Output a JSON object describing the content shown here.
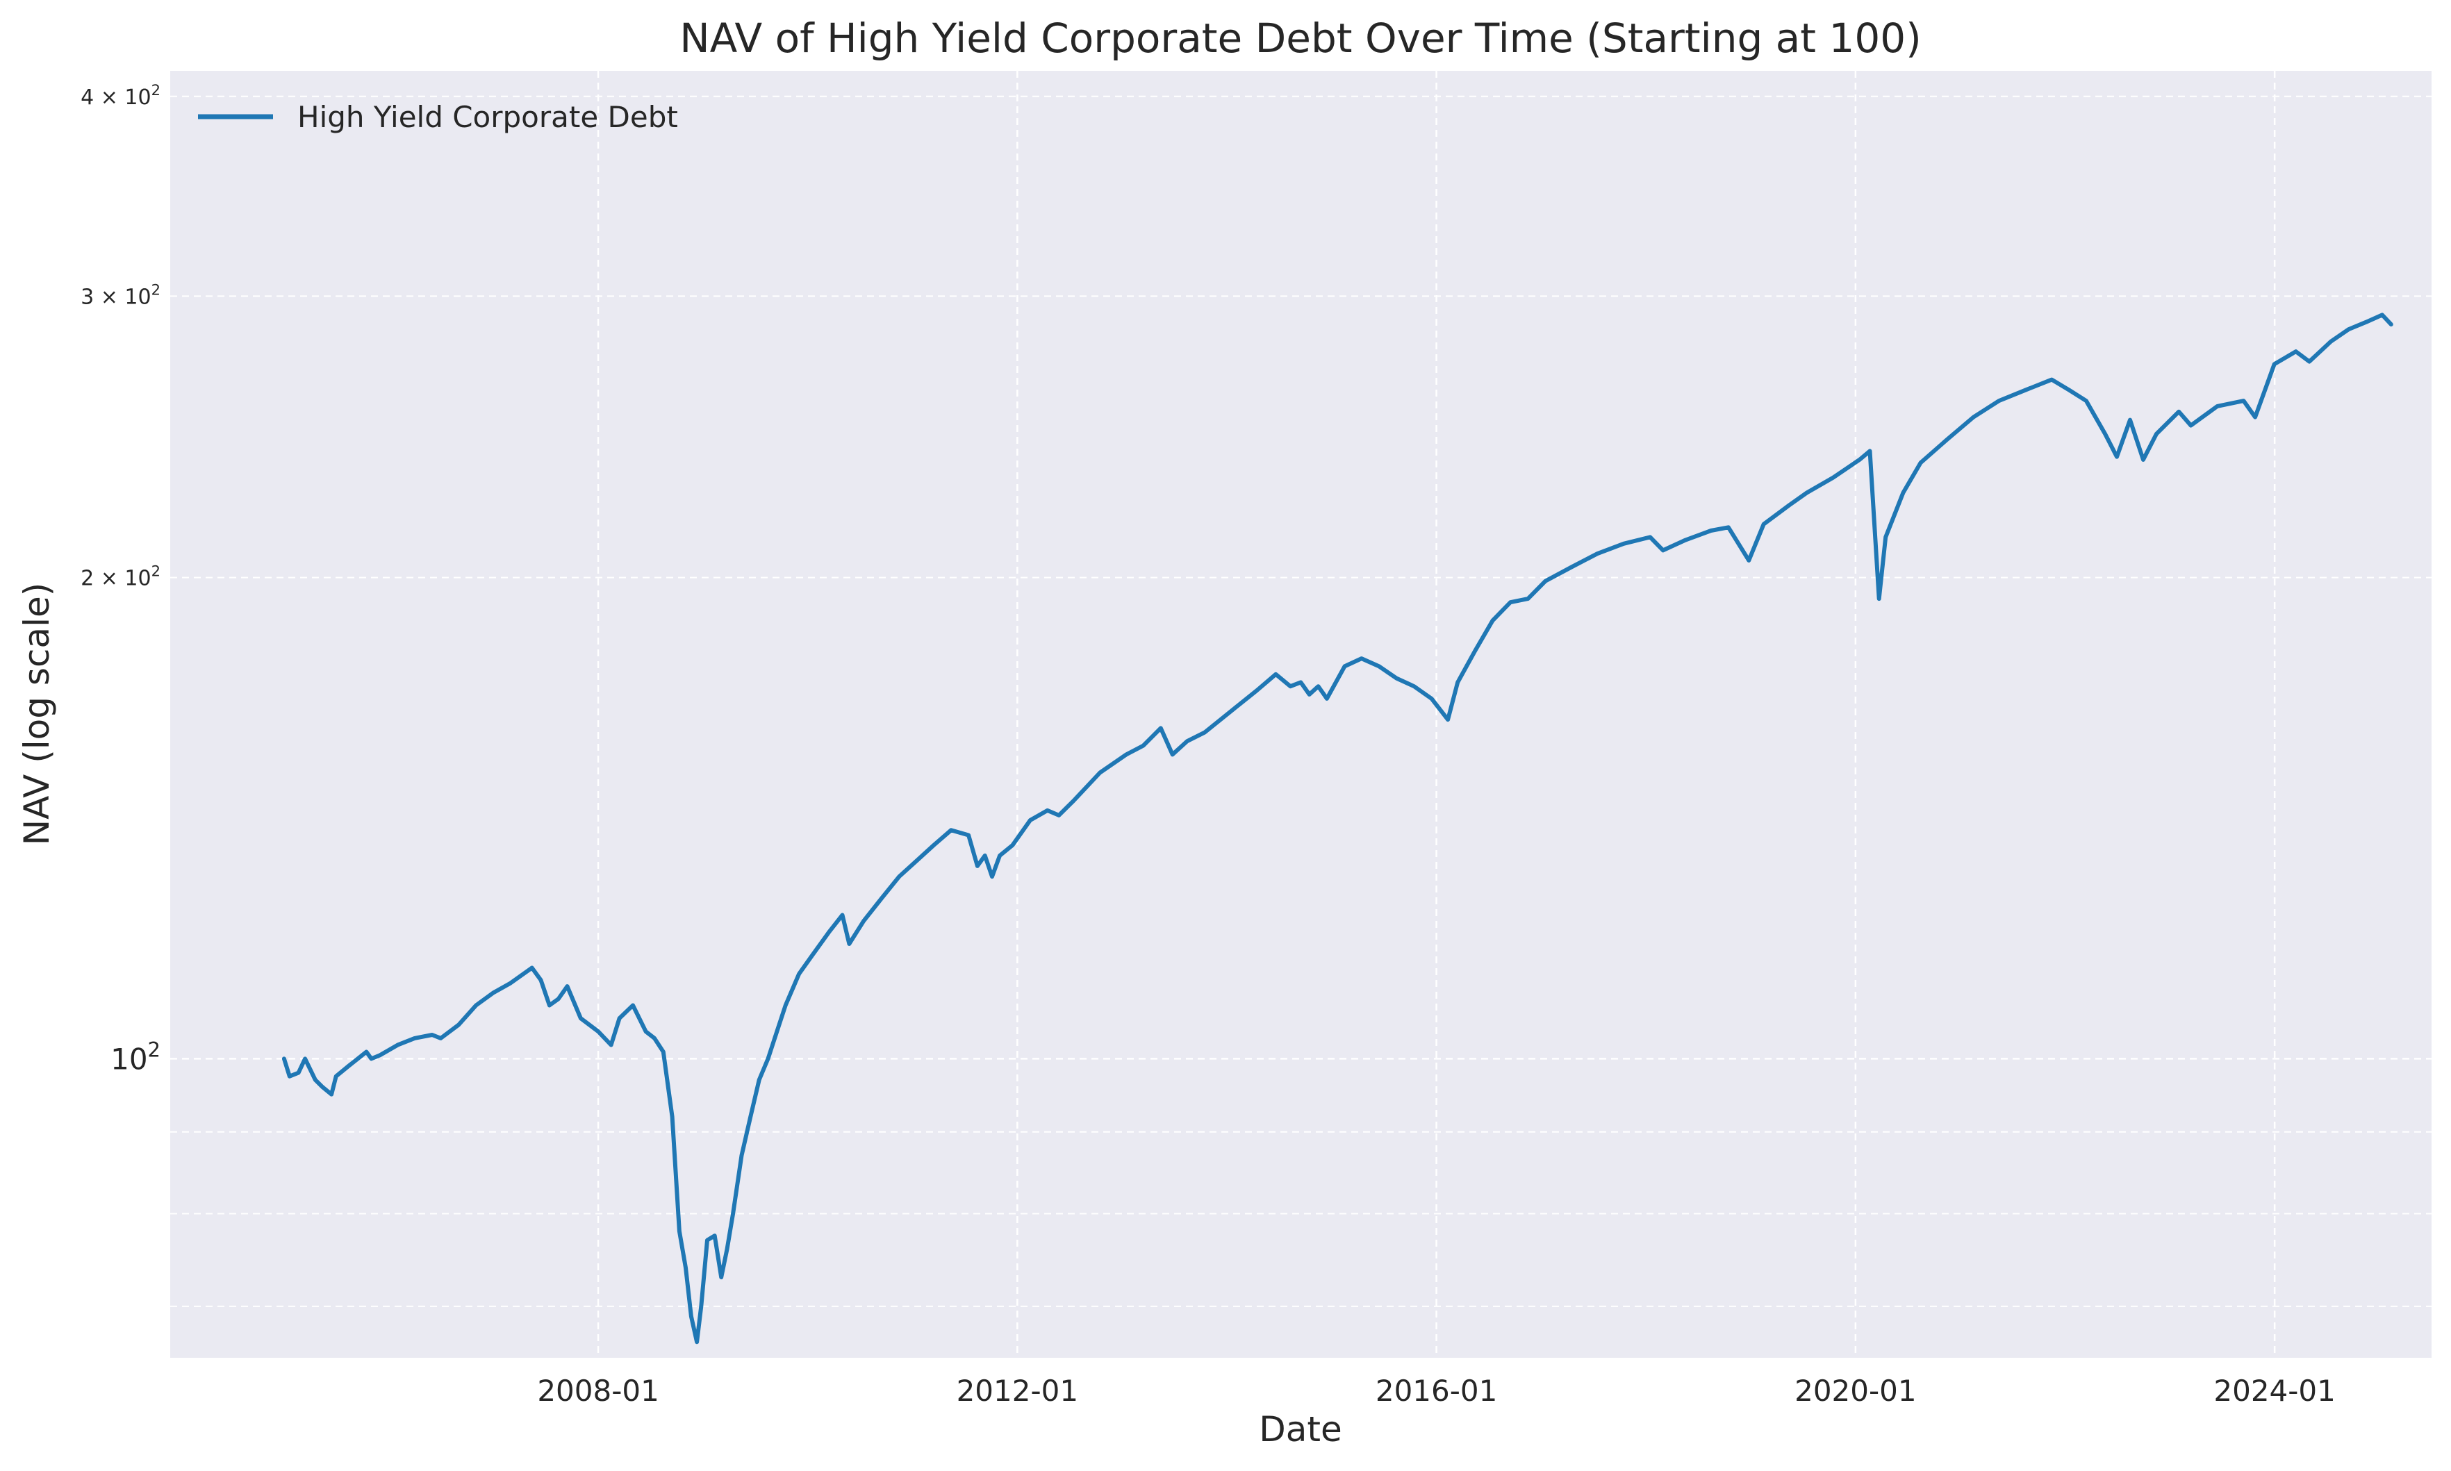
{
  "chart_data": {
    "type": "line",
    "title": "NAV of High Yield Corporate Debt Over Time (Starting at 100)",
    "xlabel": "Date",
    "ylabel": "NAV (log scale)",
    "yscale": "log",
    "ylim": [
      65,
      415
    ],
    "xlim": [
      "2003-12-01",
      "2025-07-01"
    ],
    "grid": true,
    "legend_position": "top-left",
    "x_ticks": [
      "2008-01",
      "2012-01",
      "2016-01",
      "2020-01",
      "2024-01"
    ],
    "y_major_ticks": [
      {
        "value": 100,
        "base": "10",
        "exp": "2"
      }
    ],
    "y_minor_ticks": [
      {
        "value": 70,
        "coef": "",
        "exp": ""
      },
      {
        "value": 80,
        "coef": "",
        "exp": ""
      },
      {
        "value": 90,
        "coef": "",
        "exp": ""
      },
      {
        "value": 200,
        "coef": "2",
        "exp": "2"
      },
      {
        "value": 300,
        "coef": "3",
        "exp": "2"
      },
      {
        "value": 400,
        "coef": "4",
        "exp": "2"
      }
    ],
    "colors": {
      "line": "#1f77b4",
      "plot_bg": "#eaeaf2",
      "grid": "#ffffff"
    },
    "series": [
      {
        "name": "High Yield Corporate Debt",
        "points": [
          [
            "2005-01-01",
            100
          ],
          [
            "2005-01-20",
            97.5
          ],
          [
            "2005-02-20",
            98
          ],
          [
            "2005-03-15",
            100
          ],
          [
            "2005-04-20",
            97
          ],
          [
            "2005-05-15",
            96
          ],
          [
            "2005-06-15",
            95
          ],
          [
            "2005-07-01",
            97.5
          ],
          [
            "2005-08-15",
            99
          ],
          [
            "2005-09-15",
            100
          ],
          [
            "2005-10-15",
            101
          ],
          [
            "2005-11-01",
            100
          ],
          [
            "2005-12-01",
            100.5
          ],
          [
            "2006-02-01",
            102
          ],
          [
            "2006-04-01",
            103
          ],
          [
            "2006-06-01",
            103.5
          ],
          [
            "2006-07-01",
            103
          ],
          [
            "2006-09-01",
            105
          ],
          [
            "2006-11-01",
            108
          ],
          [
            "2007-01-01",
            110
          ],
          [
            "2007-03-01",
            111.5
          ],
          [
            "2007-05-15",
            114
          ],
          [
            "2007-06-15",
            112
          ],
          [
            "2007-07-15",
            108
          ],
          [
            "2007-08-15",
            109
          ],
          [
            "2007-09-15",
            111
          ],
          [
            "2007-11-01",
            106
          ],
          [
            "2008-01-01",
            104
          ],
          [
            "2008-02-15",
            102
          ],
          [
            "2008-03-15",
            106
          ],
          [
            "2008-05-01",
            108
          ],
          [
            "2008-06-15",
            104
          ],
          [
            "2008-07-15",
            103
          ],
          [
            "2008-08-15",
            101
          ],
          [
            "2008-09-15",
            92
          ],
          [
            "2008-10-10",
            78
          ],
          [
            "2008-11-01",
            74
          ],
          [
            "2008-11-20",
            69
          ],
          [
            "2008-12-10",
            66.5
          ],
          [
            "2008-12-25",
            70
          ],
          [
            "2009-01-15",
            77
          ],
          [
            "2009-02-10",
            77.5
          ],
          [
            "2009-03-05",
            73
          ],
          [
            "2009-03-25",
            76
          ],
          [
            "2009-04-15",
            80
          ],
          [
            "2009-05-15",
            87
          ],
          [
            "2009-06-15",
            92
          ],
          [
            "2009-07-15",
            97
          ],
          [
            "2009-08-15",
            100
          ],
          [
            "2009-09-15",
            104
          ],
          [
            "2009-10-15",
            108
          ],
          [
            "2009-12-01",
            113
          ],
          [
            "2010-01-15",
            116
          ],
          [
            "2010-03-15",
            120
          ],
          [
            "2010-05-01",
            123
          ],
          [
            "2010-05-25",
            118
          ],
          [
            "2010-07-15",
            122
          ],
          [
            "2010-09-15",
            126
          ],
          [
            "2010-11-15",
            130
          ],
          [
            "2011-01-15",
            133
          ],
          [
            "2011-03-15",
            136
          ],
          [
            "2011-05-15",
            139
          ],
          [
            "2011-07-15",
            138
          ],
          [
            "2011-08-15",
            132
          ],
          [
            "2011-09-10",
            134
          ],
          [
            "2011-10-05",
            130
          ],
          [
            "2011-11-01",
            134
          ],
          [
            "2011-12-15",
            136
          ],
          [
            "2012-02-15",
            141
          ],
          [
            "2012-04-15",
            143
          ],
          [
            "2012-05-25",
            142
          ],
          [
            "2012-07-15",
            145
          ],
          [
            "2012-10-15",
            151
          ],
          [
            "2013-01-15",
            155
          ],
          [
            "2013-03-15",
            157
          ],
          [
            "2013-05-15",
            161
          ],
          [
            "2013-06-25",
            155
          ],
          [
            "2013-08-15",
            158
          ],
          [
            "2013-10-15",
            160
          ],
          [
            "2014-01-15",
            165
          ],
          [
            "2014-04-15",
            170
          ],
          [
            "2014-06-20",
            174
          ],
          [
            "2014-08-10",
            171
          ],
          [
            "2014-09-15",
            172
          ],
          [
            "2014-10-15",
            169
          ],
          [
            "2014-11-15",
            171
          ],
          [
            "2014-12-15",
            168
          ],
          [
            "2015-02-15",
            176
          ],
          [
            "2015-04-15",
            178
          ],
          [
            "2015-06-15",
            176
          ],
          [
            "2015-08-15",
            173
          ],
          [
            "2015-10-15",
            171
          ],
          [
            "2015-12-15",
            168
          ],
          [
            "2016-02-10",
            163
          ],
          [
            "2016-03-15",
            172
          ],
          [
            "2016-05-15",
            180
          ],
          [
            "2016-07-15",
            188
          ],
          [
            "2016-09-15",
            193
          ],
          [
            "2016-11-15",
            194
          ],
          [
            "2017-01-15",
            199
          ],
          [
            "2017-04-15",
            203
          ],
          [
            "2017-07-15",
            207
          ],
          [
            "2017-10-15",
            210
          ],
          [
            "2018-01-15",
            212
          ],
          [
            "2018-03-01",
            208
          ],
          [
            "2018-05-15",
            211
          ],
          [
            "2018-08-15",
            214
          ],
          [
            "2018-10-15",
            215
          ],
          [
            "2018-12-25",
            205
          ],
          [
            "2019-02-15",
            216
          ],
          [
            "2019-05-15",
            222
          ],
          [
            "2019-07-15",
            226
          ],
          [
            "2019-10-15",
            231
          ],
          [
            "2020-01-15",
            237
          ],
          [
            "2020-02-20",
            240
          ],
          [
            "2020-03-23",
            194
          ],
          [
            "2020-04-15",
            212
          ],
          [
            "2020-06-15",
            226
          ],
          [
            "2020-08-15",
            236
          ],
          [
            "2020-11-15",
            244
          ],
          [
            "2021-02-15",
            252
          ],
          [
            "2021-05-15",
            258
          ],
          [
            "2021-08-15",
            262
          ],
          [
            "2021-11-15",
            266
          ],
          [
            "2022-01-15",
            262
          ],
          [
            "2022-03-15",
            258
          ],
          [
            "2022-05-20",
            246
          ],
          [
            "2022-06-30",
            238
          ],
          [
            "2022-08-15",
            251
          ],
          [
            "2022-09-30",
            237
          ],
          [
            "2022-11-15",
            246
          ],
          [
            "2023-02-01",
            254
          ],
          [
            "2023-03-15",
            249
          ],
          [
            "2023-06-15",
            256
          ],
          [
            "2023-09-15",
            258
          ],
          [
            "2023-10-25",
            252
          ],
          [
            "2023-12-31",
            272
          ],
          [
            "2024-03-15",
            277
          ],
          [
            "2024-05-01",
            273
          ],
          [
            "2024-07-15",
            281
          ],
          [
            "2024-09-15",
            286
          ],
          [
            "2024-11-15",
            289
          ],
          [
            "2025-01-10",
            292
          ],
          [
            "2025-02-10",
            288
          ]
        ]
      }
    ]
  }
}
